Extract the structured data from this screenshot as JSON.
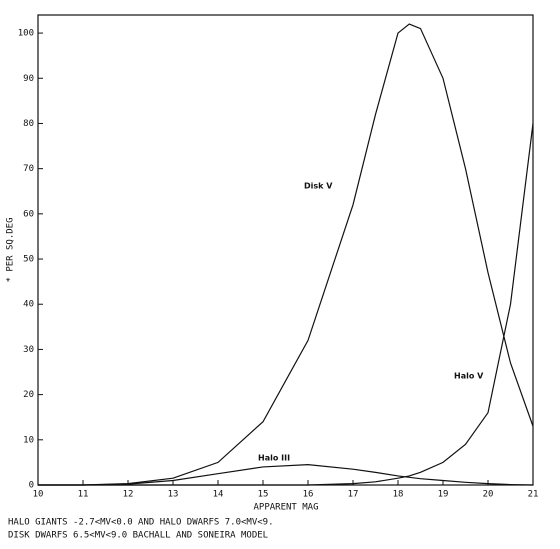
{
  "chart_data": {
    "type": "line",
    "xlabel": "APPARENT MAG",
    "ylabel": "* PER SQ.DEG",
    "notes": [
      "HALO GIANTS -2.7<MV<0.0  AND HALO DWARFS 7.0<MV<9.",
      "DISK DWARFS 6.5<MV<9.0  BACHALL AND SONEIRA MODEL"
    ],
    "x": [
      10,
      11,
      12,
      13,
      14,
      15,
      16,
      17,
      17.5,
      18,
      18.25,
      18.5,
      19,
      19.5,
      20,
      20.5,
      21
    ],
    "series": [
      {
        "name": "Disk V",
        "color": "#111111",
        "values": [
          0,
          0,
          0.3,
          1.5,
          5,
          14,
          32,
          62,
          82,
          100,
          102,
          101,
          90,
          70,
          47,
          27,
          13
        ]
      },
      {
        "name": "Halo V",
        "color": "#111111",
        "values": [
          0,
          0,
          0,
          0,
          0,
          0,
          0,
          0.3,
          0.7,
          1.5,
          2,
          2.8,
          5,
          9,
          16,
          40,
          80
        ]
      },
      {
        "name": "Halo III",
        "color": "#111111",
        "values": [
          0,
          0,
          0.2,
          1,
          2.5,
          4,
          4.5,
          3.5,
          2.8,
          2,
          1.7,
          1.4,
          1,
          0.6,
          0.3,
          0.1,
          0
        ]
      }
    ],
    "xlim": [
      10,
      21
    ],
    "ylim": [
      0,
      104
    ],
    "xticks": [
      10,
      11,
      12,
      13,
      14,
      15,
      16,
      17,
      18,
      19,
      20,
      21
    ],
    "yticks": [
      0,
      10,
      20,
      30,
      40,
      50,
      60,
      70,
      80,
      90,
      100
    ]
  }
}
